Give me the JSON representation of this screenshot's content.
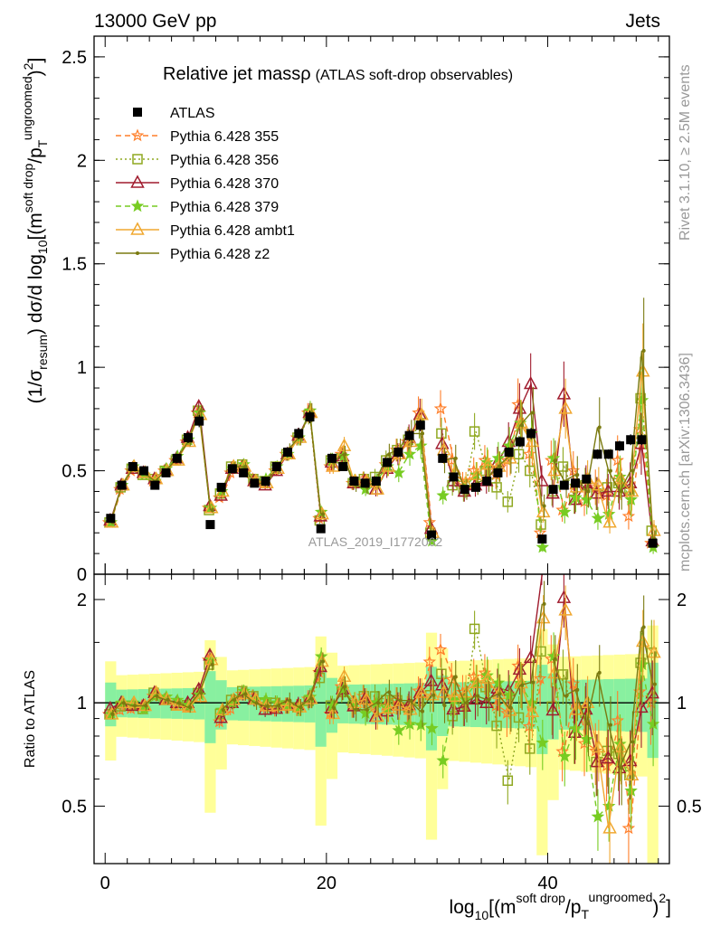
{
  "header": {
    "left": "13000 GeV pp",
    "right": "Jets"
  },
  "side_text": {
    "rivet": "Rivet 3.1.10, ≥ 2.5M events",
    "mcplots": "mcplots.cern.ch [arXiv:1306.3436]"
  },
  "watermark": "ATLAS_2019_I1772062",
  "colors": {
    "ATLAS": "#000000",
    "p355": "#ff7f2a",
    "p356": "#8fa820",
    "p370": "#a01c2e",
    "p379": "#77cc22",
    "ambt1": "#f0a830",
    "z2": "#7a7a10",
    "band_outer": "#ffff99",
    "band_inner": "#88f0a0"
  },
  "chart_data": [
    {
      "type": "line",
      "title": "Relative jet massρ",
      "subtitle": "(ATLAS soft-drop observables)",
      "ylabel": "(1/σresum) dσ/d log10[(m soft drop/pT ungroomed)2]",
      "xlim": [
        -1,
        51
      ],
      "ylim": [
        0,
        2.6
      ],
      "yticks": [
        "0",
        "0.5",
        "1",
        "1.5",
        "2",
        "2.5"
      ],
      "legend_position": "top-left",
      "x": [
        0.5,
        1.5,
        2.5,
        3.5,
        4.5,
        5.5,
        6.5,
        7.5,
        8.5,
        9.5,
        10.5,
        11.5,
        12.5,
        13.5,
        14.5,
        15.5,
        16.5,
        17.5,
        18.5,
        19.5,
        20.5,
        21.5,
        22.5,
        23.5,
        24.5,
        25.5,
        26.5,
        27.5,
        28.5,
        29.5,
        30.5,
        31.5,
        32.5,
        33.5,
        34.5,
        35.5,
        36.5,
        37.5,
        38.5,
        39.5,
        40.5,
        41.5,
        42.5,
        43.5,
        44.5,
        45.5,
        46.5,
        47.5,
        48.5,
        49.5
      ],
      "series": [
        {
          "name": "ATLAS",
          "values": [
            0.27,
            0.43,
            0.52,
            0.5,
            0.43,
            0.49,
            0.56,
            0.66,
            0.74,
            0.24,
            0.42,
            0.51,
            0.49,
            0.44,
            0.45,
            0.52,
            0.59,
            0.68,
            0.76,
            0.22,
            0.56,
            0.52,
            0.45,
            0.44,
            0.45,
            0.54,
            0.59,
            0.67,
            0.72,
            0.19,
            0.56,
            0.47,
            0.41,
            0.42,
            0.45,
            0.49,
            0.59,
            0.64,
            0.68,
            0.17,
            0.41,
            0.43,
            0.44,
            0.46,
            0.58,
            0.58,
            0.62,
            0.65,
            0.65,
            0.15
          ]
        },
        {
          "name": "Pythia 6.428 355",
          "values": [
            0.25,
            0.41,
            0.5,
            0.49,
            0.45,
            0.5,
            0.55,
            0.64,
            0.78,
            0.32,
            0.37,
            0.49,
            0.52,
            0.46,
            0.44,
            0.5,
            0.58,
            0.66,
            0.78,
            0.27,
            0.52,
            0.58,
            0.44,
            0.46,
            0.44,
            0.53,
            0.6,
            0.64,
            0.78,
            0.25,
            0.8,
            0.55,
            0.44,
            0.5,
            0.55,
            0.48,
            0.55,
            0.82,
            0.58,
            0.2,
            0.55,
            0.31,
            0.5,
            0.35,
            0.42,
            0.38,
            0.55,
            0.28,
            0.7,
            0.15
          ]
        },
        {
          "name": "Pythia 6.428 356",
          "values": [
            0.25,
            0.42,
            0.51,
            0.48,
            0.46,
            0.5,
            0.55,
            0.65,
            0.79,
            0.31,
            0.39,
            0.52,
            0.53,
            0.46,
            0.45,
            0.52,
            0.58,
            0.66,
            0.77,
            0.26,
            0.55,
            0.56,
            0.44,
            0.46,
            0.47,
            0.55,
            0.6,
            0.65,
            0.73,
            0.2,
            0.68,
            0.43,
            0.4,
            0.69,
            0.5,
            0.42,
            0.35,
            0.58,
            0.5,
            0.24,
            0.4,
            0.52,
            0.36,
            0.43,
            0.39,
            0.42,
            0.44,
            0.4,
            0.85,
            0.21
          ]
        },
        {
          "name": "Pythia 6.428 370",
          "values": [
            0.26,
            0.43,
            0.51,
            0.49,
            0.46,
            0.5,
            0.56,
            0.66,
            0.81,
            0.33,
            0.38,
            0.51,
            0.52,
            0.45,
            0.43,
            0.5,
            0.58,
            0.67,
            0.78,
            0.28,
            0.54,
            0.57,
            0.44,
            0.45,
            0.41,
            0.51,
            0.58,
            0.66,
            0.77,
            0.22,
            0.63,
            0.45,
            0.4,
            0.43,
            0.45,
            0.54,
            0.64,
            0.8,
            0.92,
            0.45,
            0.39,
            0.87,
            0.36,
            0.44,
            0.39,
            0.4,
            0.4,
            0.44,
            0.63,
            0.16
          ]
        },
        {
          "name": "Pythia 6.428 379",
          "values": [
            0.25,
            0.43,
            0.52,
            0.48,
            0.45,
            0.51,
            0.57,
            0.65,
            0.78,
            0.32,
            0.4,
            0.51,
            0.53,
            0.45,
            0.46,
            0.52,
            0.58,
            0.66,
            0.79,
            0.3,
            0.55,
            0.57,
            0.45,
            0.41,
            0.45,
            0.52,
            0.49,
            0.58,
            0.62,
            0.16,
            0.38,
            0.48,
            0.42,
            0.48,
            0.54,
            0.56,
            0.62,
            0.73,
            0.68,
            0.13,
            0.56,
            0.3,
            0.37,
            0.36,
            0.27,
            0.29,
            0.47,
            0.36,
            0.84,
            0.13
          ]
        },
        {
          "name": "Pythia 6.428 ambt1",
          "values": [
            0.25,
            0.43,
            0.52,
            0.49,
            0.46,
            0.5,
            0.55,
            0.64,
            0.77,
            0.32,
            0.4,
            0.52,
            0.52,
            0.45,
            0.44,
            0.51,
            0.58,
            0.66,
            0.78,
            0.29,
            0.52,
            0.62,
            0.45,
            0.45,
            0.41,
            0.52,
            0.58,
            0.64,
            0.77,
            0.2,
            0.6,
            0.49,
            0.44,
            0.48,
            0.53,
            0.52,
            0.56,
            0.73,
            0.64,
            0.3,
            0.5,
            0.8,
            0.42,
            0.46,
            0.43,
            0.25,
            0.46,
            0.4,
            0.98,
            0.21
          ]
        },
        {
          "name": "Pythia 6.428 z2",
          "values": [
            0.25,
            0.43,
            0.51,
            0.49,
            0.45,
            0.5,
            0.56,
            0.64,
            0.79,
            0.31,
            0.4,
            0.52,
            0.52,
            0.44,
            0.44,
            0.51,
            0.6,
            0.66,
            0.78,
            0.29,
            0.54,
            0.58,
            0.43,
            0.42,
            0.45,
            0.58,
            0.6,
            0.68,
            0.68,
            0.2,
            0.55,
            0.56,
            0.41,
            0.44,
            0.46,
            0.52,
            0.57,
            0.72,
            0.78,
            0.33,
            0.55,
            0.45,
            0.48,
            0.4,
            0.71,
            0.5,
            0.4,
            0.5,
            1.08,
            0.17
          ]
        }
      ]
    },
    {
      "type": "line",
      "ylabel": "Ratio to ATLAS",
      "xlabel": "log10[(m soft drop/pT ungroomed)2]",
      "xlim": [
        -1,
        51
      ],
      "ylim": [
        0.34,
        2.37
      ],
      "yticks": [
        "0.5",
        "1",
        "2"
      ],
      "xticks": [
        "0",
        "20",
        "40"
      ],
      "reference": 1
    }
  ]
}
